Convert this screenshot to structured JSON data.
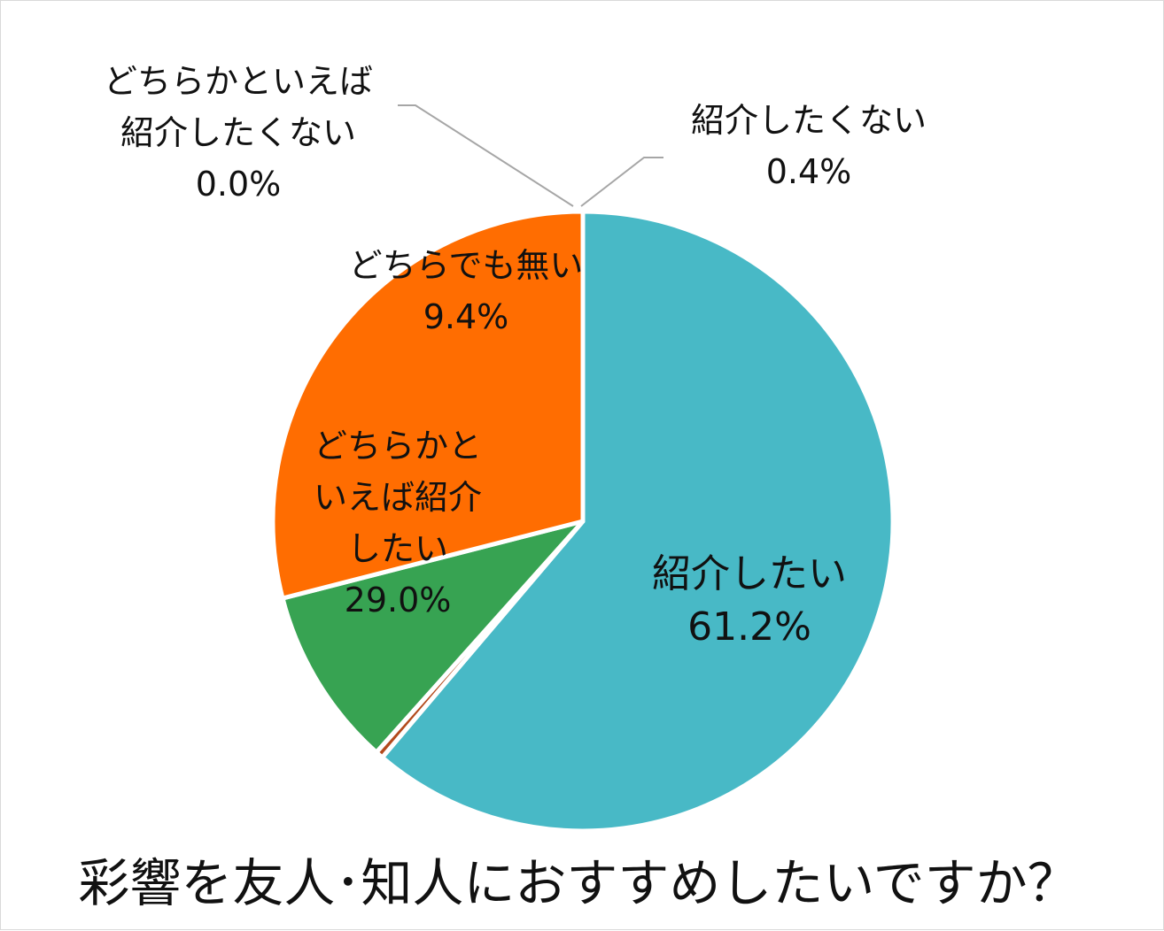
{
  "chart_data": {
    "type": "pie",
    "title": "彩響を友人･知人におすすめしたいですか？",
    "slices": [
      {
        "label_lines": [
          "紹介したい"
        ],
        "value_label": "61.2%",
        "value": 61.2,
        "color": "#48b9c6"
      },
      {
        "label_lines": [
          "紹介したくない"
        ],
        "value_label": "0.4%",
        "value": 0.4,
        "color": "#b34a1c"
      },
      {
        "label_lines": [
          "どちらかといえば",
          "紹介したくない"
        ],
        "value_label": "0.0%",
        "value": 0.0,
        "color": "#c9c9c9"
      },
      {
        "label_lines": [
          "どちらでも無い"
        ],
        "value_label": "9.4%",
        "value": 9.4,
        "color": "#37a352"
      },
      {
        "label_lines": [
          "どちらかと",
          "いえば紹介",
          "したい"
        ],
        "value_label": "29.0%",
        "value": 29.0,
        "color": "#ff6d01"
      }
    ],
    "start": "12 o'clock",
    "direction": "clockwise",
    "slice_border_color": "#ffffff",
    "leader_line_color": "#a6a6a6"
  }
}
